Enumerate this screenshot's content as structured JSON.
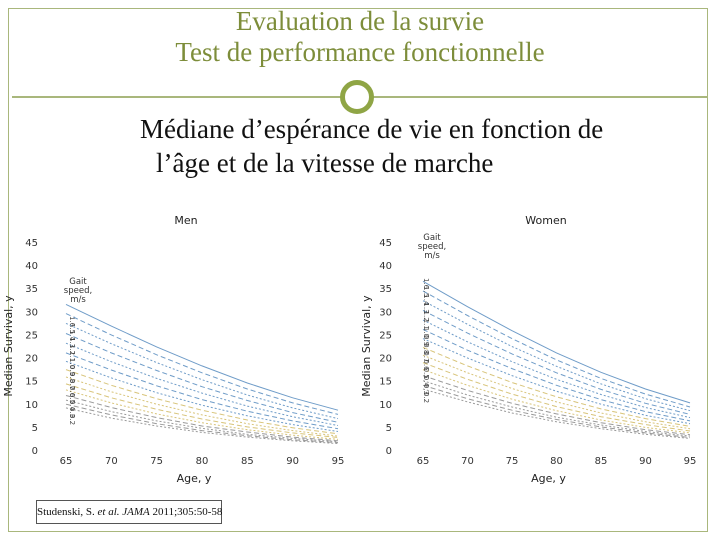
{
  "slide": {
    "title_line1": "Evaluation de la survie",
    "title_line2": "Test de performance fonctionnelle",
    "subtitle_line1": "Médiane d’espérance de vie en fonction de",
    "subtitle_line2": "l’âge et de la vitesse de marche",
    "citation_authors": "Studenski, S.",
    "citation_etal": "et al.",
    "citation_journal": "JAMA",
    "citation_ref": "2011;305:50-58"
  },
  "colors": {
    "title": "#7d8d3a",
    "accent_ring": "#8fa545",
    "fast_series": "#6f9cc8",
    "mid_series": "#d8c47a",
    "slow_series": "#9a9a9a"
  },
  "chart_data": [
    {
      "type": "line",
      "title": "Men",
      "xlabel": "Age, y",
      "ylabel": "Median Survival, y",
      "xlim": [
        65,
        95
      ],
      "ylim": [
        0,
        45
      ],
      "x_ticks": [
        "65",
        "70",
        "75",
        "80",
        "85",
        "90",
        "95"
      ],
      "y_ticks": [
        "0",
        "5",
        "10",
        "15",
        "20",
        "25",
        "30",
        "35",
        "40",
        "45"
      ],
      "legend_title": "Gait speed, m/s",
      "x": [
        65,
        70,
        75,
        80,
        85,
        90,
        95
      ],
      "series": [
        {
          "name": "1.6",
          "values": [
            31.5,
            26.8,
            22.3,
            18.2,
            14.5,
            11.3,
            8.6
          ]
        },
        {
          "name": "1.5",
          "values": [
            29.5,
            24.9,
            20.6,
            16.7,
            13.2,
            10.2,
            7.7
          ]
        },
        {
          "name": "1.4",
          "values": [
            27.4,
            23.0,
            18.9,
            15.2,
            11.9,
            9.1,
            6.8
          ]
        },
        {
          "name": "1.3",
          "values": [
            25.2,
            21.0,
            17.2,
            13.7,
            10.7,
            8.1,
            6.0
          ]
        },
        {
          "name": "1.2",
          "values": [
            23.1,
            19.1,
            15.5,
            12.3,
            9.5,
            7.2,
            5.3
          ]
        },
        {
          "name": "1.1",
          "values": [
            21.0,
            17.3,
            13.9,
            10.9,
            8.4,
            6.3,
            4.6
          ]
        },
        {
          "name": "1.0",
          "values": [
            19.2,
            15.6,
            12.4,
            9.7,
            7.4,
            5.5,
            4.0
          ]
        },
        {
          "name": "0.9",
          "values": [
            17.4,
            14.0,
            11.1,
            8.6,
            6.5,
            4.8,
            3.5
          ]
        },
        {
          "name": "0.8",
          "values": [
            15.8,
            12.6,
            9.9,
            7.6,
            5.7,
            4.2,
            3.0
          ]
        },
        {
          "name": "0.7",
          "values": [
            14.3,
            11.3,
            8.8,
            6.7,
            5.0,
            3.7,
            2.7
          ]
        },
        {
          "name": "0.6",
          "values": [
            13.0,
            10.2,
            7.8,
            5.9,
            4.4,
            3.2,
            2.3
          ]
        },
        {
          "name": "0.5",
          "values": [
            11.8,
            9.2,
            7.0,
            5.2,
            3.9,
            2.8,
            2.0
          ]
        },
        {
          "name": "0.4",
          "values": [
            10.8,
            8.3,
            6.3,
            4.7,
            3.4,
            2.5,
            1.8
          ]
        },
        {
          "name": "0.3",
          "values": [
            9.9,
            7.6,
            5.7,
            4.2,
            3.1,
            2.2,
            1.6
          ]
        },
        {
          "name": "0.2",
          "values": [
            9.1,
            6.9,
            5.2,
            3.8,
            2.8,
            2.0,
            1.4
          ]
        }
      ]
    },
    {
      "type": "line",
      "title": "Women",
      "xlabel": "Age, y",
      "ylabel": "Median Survival, y",
      "xlim": [
        65,
        95
      ],
      "ylim": [
        0,
        45
      ],
      "x_ticks": [
        "65",
        "70",
        "75",
        "80",
        "85",
        "90",
        "95"
      ],
      "y_ticks": [
        "0",
        "5",
        "10",
        "15",
        "20",
        "25",
        "30",
        "35",
        "40",
        "45"
      ],
      "legend_title": "Gait speed, m/s",
      "x": [
        65,
        70,
        75,
        80,
        85,
        90,
        95
      ],
      "series": [
        {
          "name": "1.6",
          "values": [
            36.5,
            31.0,
            25.8,
            21.0,
            16.8,
            13.2,
            10.2
          ]
        },
        {
          "name": "1.5",
          "values": [
            34.4,
            29.1,
            24.1,
            19.5,
            15.5,
            12.1,
            9.3
          ]
        },
        {
          "name": "1.4",
          "values": [
            32.3,
            27.2,
            22.4,
            18.1,
            14.3,
            11.1,
            8.5
          ]
        },
        {
          "name": "1.3",
          "values": [
            30.2,
            25.3,
            20.8,
            16.7,
            13.1,
            10.1,
            7.7
          ]
        },
        {
          "name": "1.2",
          "values": [
            28.1,
            23.4,
            19.1,
            15.3,
            12.0,
            9.2,
            7.0
          ]
        },
        {
          "name": "1.1",
          "values": [
            26.1,
            21.6,
            17.6,
            14.0,
            10.9,
            8.3,
            6.3
          ]
        },
        {
          "name": "1.0",
          "values": [
            24.1,
            19.9,
            16.1,
            12.7,
            9.9,
            7.5,
            5.7
          ]
        },
        {
          "name": "0.9",
          "values": [
            22.2,
            18.2,
            14.6,
            11.5,
            8.9,
            6.8,
            5.1
          ]
        },
        {
          "name": "0.8",
          "values": [
            20.5,
            16.7,
            13.3,
            10.4,
            8.0,
            6.1,
            4.6
          ]
        },
        {
          "name": "0.7",
          "values": [
            18.9,
            15.3,
            12.1,
            9.4,
            7.2,
            5.5,
            4.1
          ]
        },
        {
          "name": "0.6",
          "values": [
            17.4,
            14.0,
            11.0,
            8.5,
            6.5,
            4.9,
            3.7
          ]
        },
        {
          "name": "0.5",
          "values": [
            16.1,
            12.9,
            10.1,
            7.8,
            5.9,
            4.4,
            3.3
          ]
        },
        {
          "name": "0.4",
          "values": [
            15.0,
            11.9,
            9.3,
            7.1,
            5.4,
            4.0,
            3.0
          ]
        },
        {
          "name": "0.3",
          "values": [
            14.0,
            11.1,
            8.6,
            6.6,
            5.0,
            3.7,
            2.7
          ]
        },
        {
          "name": "0.2",
          "values": [
            13.2,
            10.4,
            8.0,
            6.1,
            4.6,
            3.4,
            2.5
          ]
        }
      ]
    }
  ]
}
